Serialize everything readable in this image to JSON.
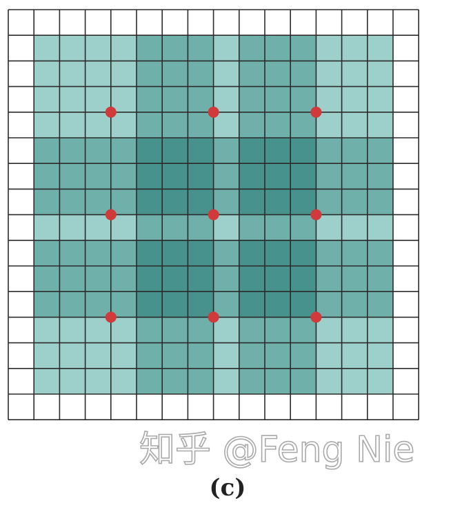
{
  "figure": {
    "caption": "(c)",
    "grid": {
      "rows": 16,
      "cols": 16
    },
    "colors": {
      "background": "#ffffff",
      "grid_line": "#2a2a2a",
      "shade_light": "#9dd0cb",
      "shade_medium": "#6fb0aa",
      "shade_dark": "#47928c",
      "dot": "#d03a3a"
    },
    "cell_levels": [
      [
        0,
        0,
        0,
        0,
        0,
        0,
        0,
        0,
        0,
        0,
        0,
        0,
        0,
        0,
        0,
        0
      ],
      [
        0,
        1,
        1,
        1,
        1,
        2,
        2,
        2,
        1,
        2,
        2,
        2,
        1,
        1,
        1,
        0
      ],
      [
        0,
        1,
        1,
        1,
        1,
        2,
        2,
        2,
        1,
        2,
        2,
        2,
        1,
        1,
        1,
        0
      ],
      [
        0,
        1,
        1,
        1,
        1,
        2,
        2,
        2,
        1,
        2,
        2,
        2,
        1,
        1,
        1,
        0
      ],
      [
        0,
        1,
        1,
        1,
        1,
        2,
        2,
        2,
        1,
        2,
        2,
        2,
        1,
        1,
        1,
        0
      ],
      [
        0,
        2,
        2,
        2,
        2,
        3,
        3,
        3,
        2,
        3,
        3,
        3,
        2,
        2,
        2,
        0
      ],
      [
        0,
        2,
        2,
        2,
        2,
        3,
        3,
        3,
        2,
        3,
        3,
        3,
        2,
        2,
        2,
        0
      ],
      [
        0,
        2,
        2,
        2,
        2,
        3,
        3,
        3,
        2,
        3,
        3,
        3,
        2,
        2,
        2,
        0
      ],
      [
        0,
        1,
        1,
        1,
        1,
        2,
        2,
        2,
        1,
        2,
        2,
        2,
        1,
        1,
        1,
        0
      ],
      [
        0,
        2,
        2,
        2,
        2,
        3,
        3,
        3,
        2,
        3,
        3,
        3,
        2,
        2,
        2,
        0
      ],
      [
        0,
        2,
        2,
        2,
        2,
        3,
        3,
        3,
        2,
        3,
        3,
        3,
        2,
        2,
        2,
        0
      ],
      [
        0,
        2,
        2,
        2,
        2,
        3,
        3,
        3,
        2,
        3,
        3,
        3,
        2,
        2,
        2,
        0
      ],
      [
        0,
        1,
        1,
        1,
        1,
        2,
        2,
        2,
        1,
        2,
        2,
        2,
        1,
        1,
        1,
        0
      ],
      [
        0,
        1,
        1,
        1,
        1,
        2,
        2,
        2,
        1,
        2,
        2,
        2,
        1,
        1,
        1,
        0
      ],
      [
        0,
        1,
        1,
        1,
        1,
        2,
        2,
        2,
        1,
        2,
        2,
        2,
        1,
        1,
        1,
        0
      ],
      [
        0,
        0,
        0,
        0,
        0,
        0,
        0,
        0,
        0,
        0,
        0,
        0,
        0,
        0,
        0,
        0
      ]
    ],
    "sample_points": [
      [
        4,
        4
      ],
      [
        4,
        8
      ],
      [
        4,
        12
      ],
      [
        8,
        4
      ],
      [
        8,
        8
      ],
      [
        8,
        12
      ],
      [
        12,
        4
      ],
      [
        12,
        8
      ],
      [
        12,
        12
      ]
    ]
  },
  "watermark": {
    "text": "知乎 @Feng Nie"
  }
}
